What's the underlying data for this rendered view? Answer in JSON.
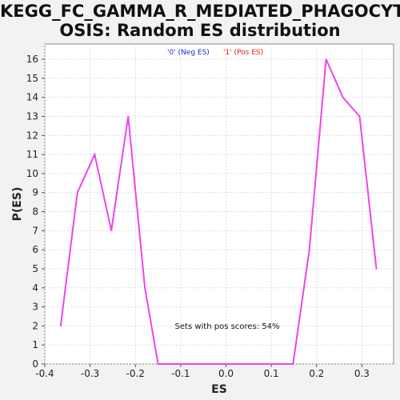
{
  "chart_data": {
    "type": "line",
    "title_lines": [
      "KEGG_FC_GAMMA_R_MEDIATED_PHAGOCYT",
      "OSIS: Random ES distribution"
    ],
    "xlabel": "ES",
    "ylabel": "P(ES)",
    "xlim": [
      -0.4,
      0.37
    ],
    "ylim": [
      0,
      16.8
    ],
    "x_ticks": [
      -0.4,
      -0.3,
      -0.2,
      -0.1,
      0.0,
      0.1,
      0.2,
      0.3
    ],
    "x_tick_labels": [
      "-0.4",
      "-0.3",
      "-0.2",
      "-0.1",
      "0.0",
      "0.1",
      "0.2",
      "0.3"
    ],
    "y_ticks": [
      0,
      1,
      2,
      3,
      4,
      5,
      6,
      7,
      8,
      9,
      10,
      11,
      12,
      13,
      14,
      15,
      16
    ],
    "y_tick_labels": [
      "0",
      "1",
      "2",
      "3",
      "4",
      "5",
      "6",
      "7",
      "8",
      "9",
      "10",
      "11",
      "12",
      "13",
      "14",
      "15",
      "16"
    ],
    "legend": [
      {
        "label": "'0' (Neg ES)",
        "color": "#2222cc"
      },
      {
        "label": "'1' (Pos ES)",
        "color": "#dd2222"
      }
    ],
    "annotation": "Sets with pos scores: 54%",
    "grid": true,
    "series": [
      {
        "name": "Random ES",
        "color": "#ee44ee",
        "x": [
          -0.365,
          -0.328,
          -0.29,
          -0.253,
          -0.216,
          -0.179,
          -0.15,
          0.148,
          0.184,
          0.221,
          0.258,
          0.295,
          0.332
        ],
        "y": [
          2,
          9,
          11,
          7,
          13,
          4,
          0,
          0,
          6,
          16,
          14,
          13,
          5
        ]
      }
    ]
  }
}
